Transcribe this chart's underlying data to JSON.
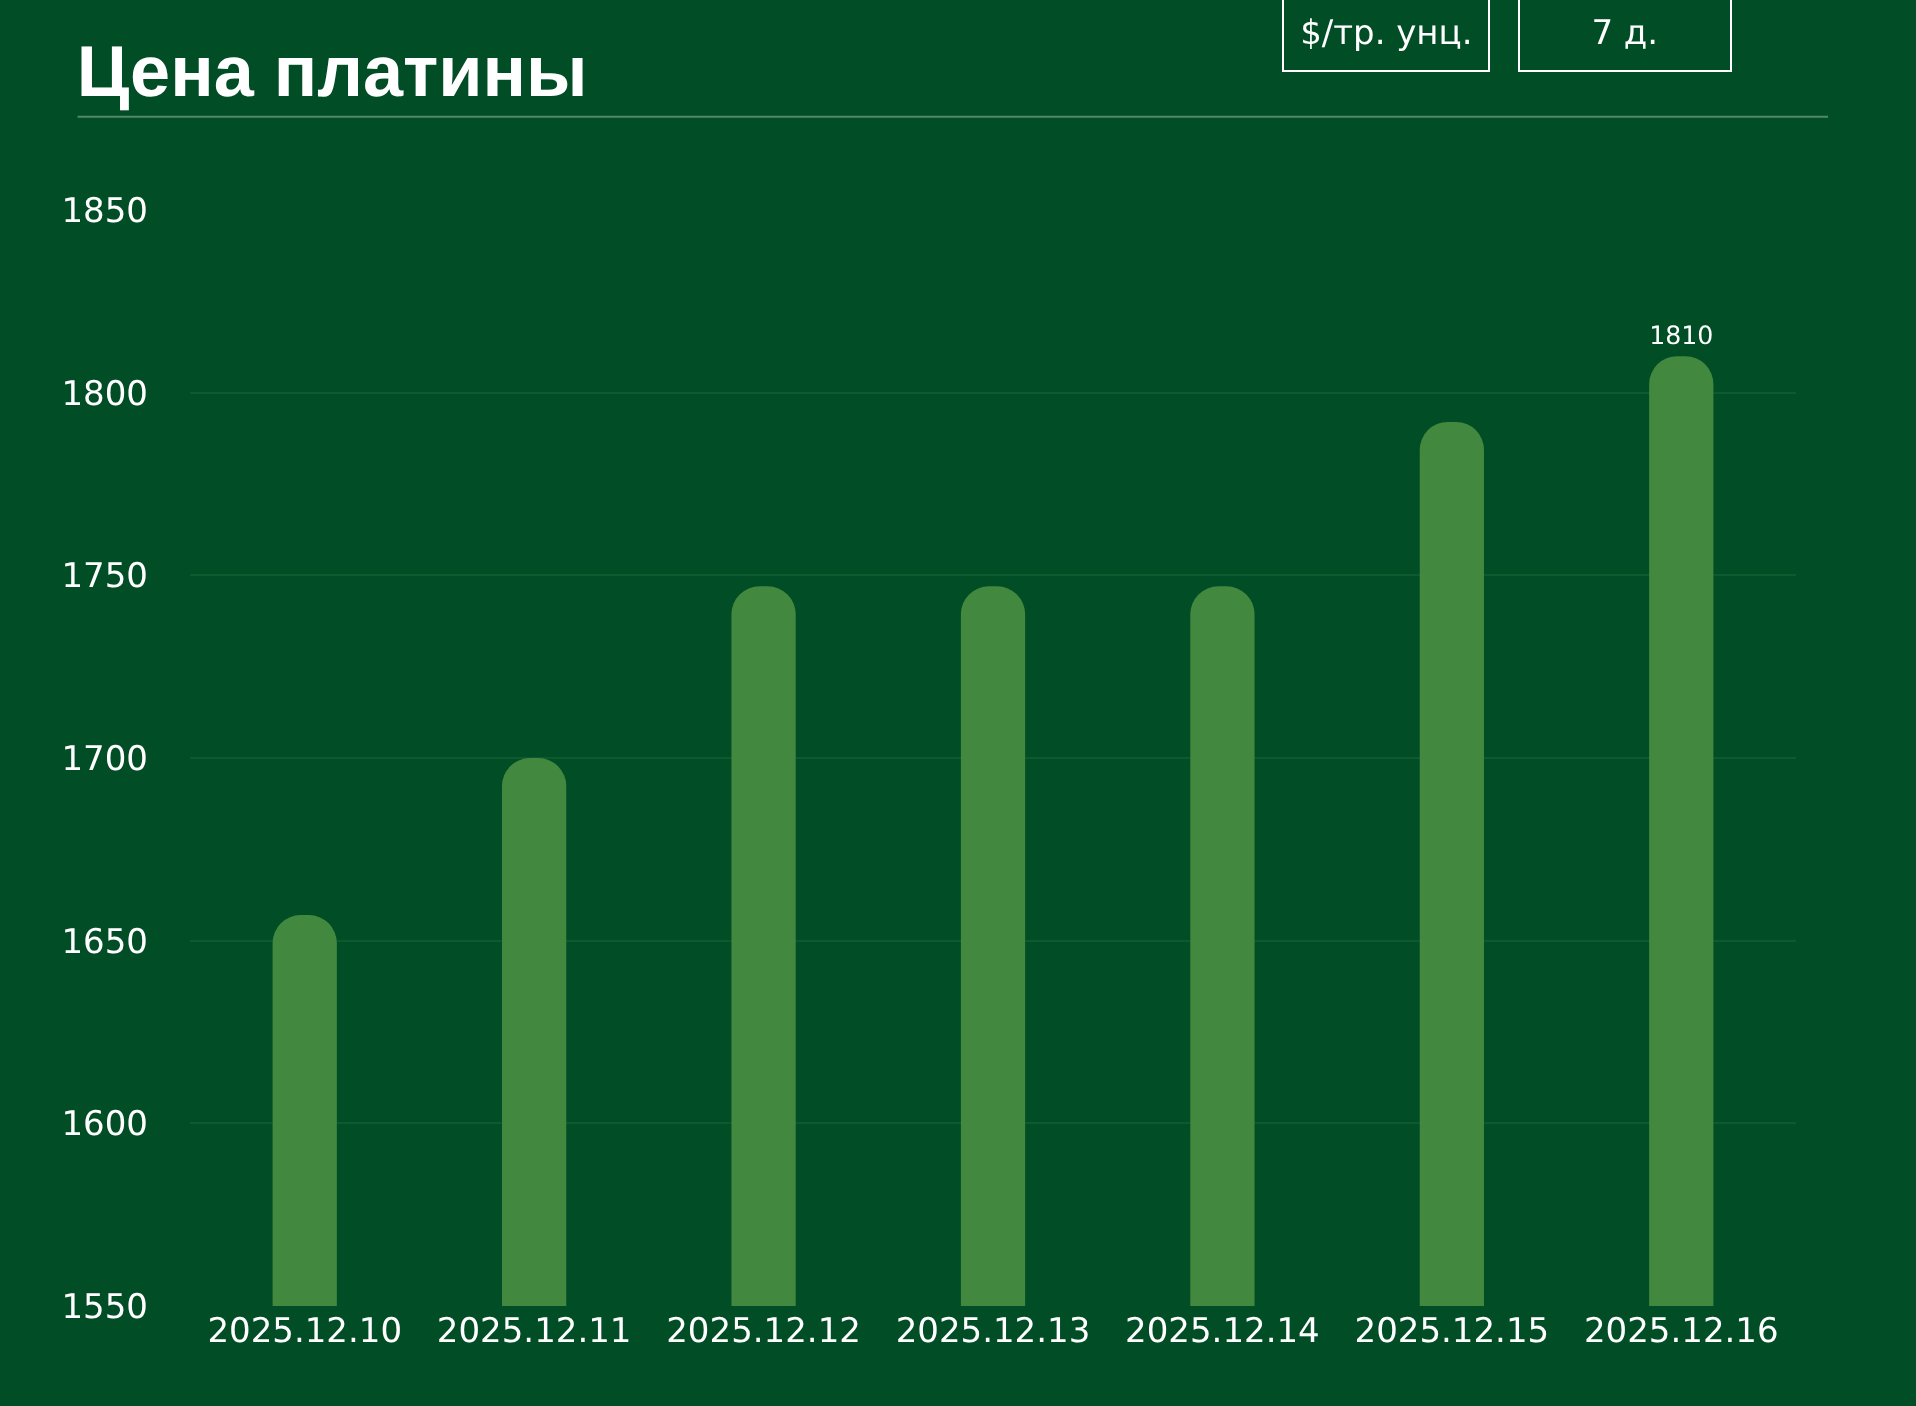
{
  "chart_data": {
    "type": "bar",
    "title": "Цена платины",
    "annotations": [
      "$/тр. унц.",
      "7 д."
    ],
    "categories": [
      "2025.12.10",
      "2025.12.11",
      "2025.12.12",
      "2025.12.13",
      "2025.12.14",
      "2025.12.15",
      "2025.12.16"
    ],
    "values": [
      1657,
      1700,
      1747,
      1747,
      1747,
      1792,
      1810
    ],
    "value_labels": [
      null,
      null,
      null,
      null,
      null,
      null,
      "1810"
    ],
    "color": "#43883f",
    "ylim": [
      1550,
      1850
    ],
    "yticks": [
      1550,
      1600,
      1650,
      1700,
      1750,
      1800,
      1850
    ],
    "grid": "y",
    "legend": false
  }
}
